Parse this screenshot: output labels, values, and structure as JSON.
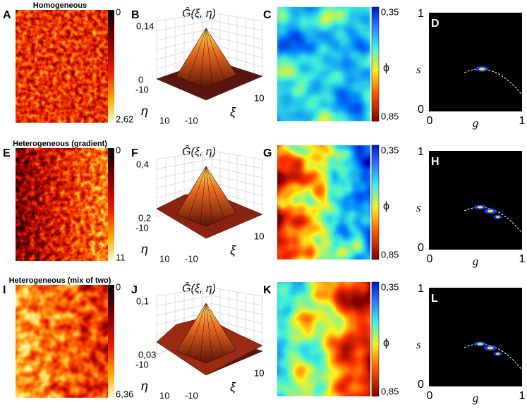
{
  "panels": [
    {
      "image": {
        "letter": "A",
        "title": "Homogeneous",
        "colorbar_top": "0",
        "colorbar_bottom": "2,62"
      },
      "surface": {
        "letter": "B",
        "z_label": "Ĝ(ξ, η)",
        "z_top": "0,14",
        "z_bottom": "0",
        "eta_near": "-10",
        "eta_far": "10",
        "eta_label": "η",
        "xi_near": "-10",
        "xi_far": "10",
        "xi_label": "ξ"
      },
      "phi_map": {
        "letter": "C",
        "colorbar_top": "0,35",
        "colorbar_bottom": "0,85",
        "colorbar_label": "ϕ"
      },
      "sg_plot": {
        "letter": "D",
        "y_top": "1",
        "y_bottom": "0",
        "x_left": "0",
        "x_right": "1",
        "y_label": "s",
        "x_label": "g"
      }
    },
    {
      "image": {
        "letter": "E",
        "title": "Heterogeneous (gradient)",
        "colorbar_top": "0",
        "colorbar_bottom": "11"
      },
      "surface": {
        "letter": "F",
        "z_label": "Ĝ(ξ, η)",
        "z_top": "0,4",
        "z_bottom": "0,2",
        "eta_near": "-10",
        "eta_far": "10",
        "eta_label": "η",
        "xi_near": "-10",
        "xi_far": "10",
        "xi_label": "ξ"
      },
      "phi_map": {
        "letter": "G",
        "colorbar_top": "0,35",
        "colorbar_bottom": "0,85",
        "colorbar_label": "ϕ"
      },
      "sg_plot": {
        "letter": "H",
        "y_top": "1",
        "y_bottom": "0",
        "x_left": "0",
        "x_right": "1",
        "y_label": "s",
        "x_label": "g"
      }
    },
    {
      "image": {
        "letter": "I",
        "title": "Heterogeneous (mix of two)",
        "colorbar_top": "0",
        "colorbar_bottom": "6,36"
      },
      "surface": {
        "letter": "J",
        "z_label": "Ĝ(ξ, η)",
        "z_top": "0,1",
        "z_bottom": "0,03",
        "eta_near": "-10",
        "eta_far": "10",
        "eta_label": "η",
        "xi_near": "-10",
        "xi_far": "10",
        "xi_label": "ξ"
      },
      "phi_map": {
        "letter": "K",
        "colorbar_top": "0,35",
        "colorbar_bottom": "0,85",
        "colorbar_label": "ϕ"
      },
      "sg_plot": {
        "letter": "L",
        "y_top": "1",
        "y_bottom": "0",
        "x_left": "0",
        "x_right": "1",
        "y_label": "s",
        "x_label": "g"
      }
    }
  ]
}
